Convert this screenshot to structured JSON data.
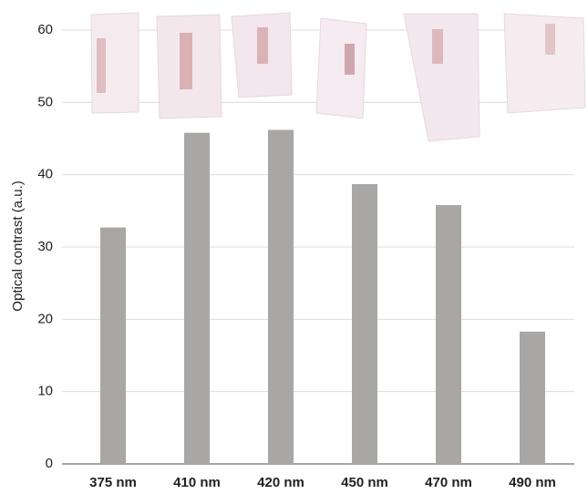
{
  "chart_data": {
    "type": "bar",
    "y_label": "Optical contrast (a.u.)",
    "categories": [
      "375 nm",
      "410 nm",
      "420 nm",
      "450 nm",
      "470 nm",
      "490 nm"
    ],
    "values": [
      32.7,
      45.8,
      46.2,
      38.7,
      35.8,
      18.3
    ],
    "color": "#a9a7a6",
    "ylim": [
      0,
      60
    ],
    "yticks": [
      0,
      10,
      20,
      30,
      40,
      50,
      60
    ],
    "grid": true
  }
}
